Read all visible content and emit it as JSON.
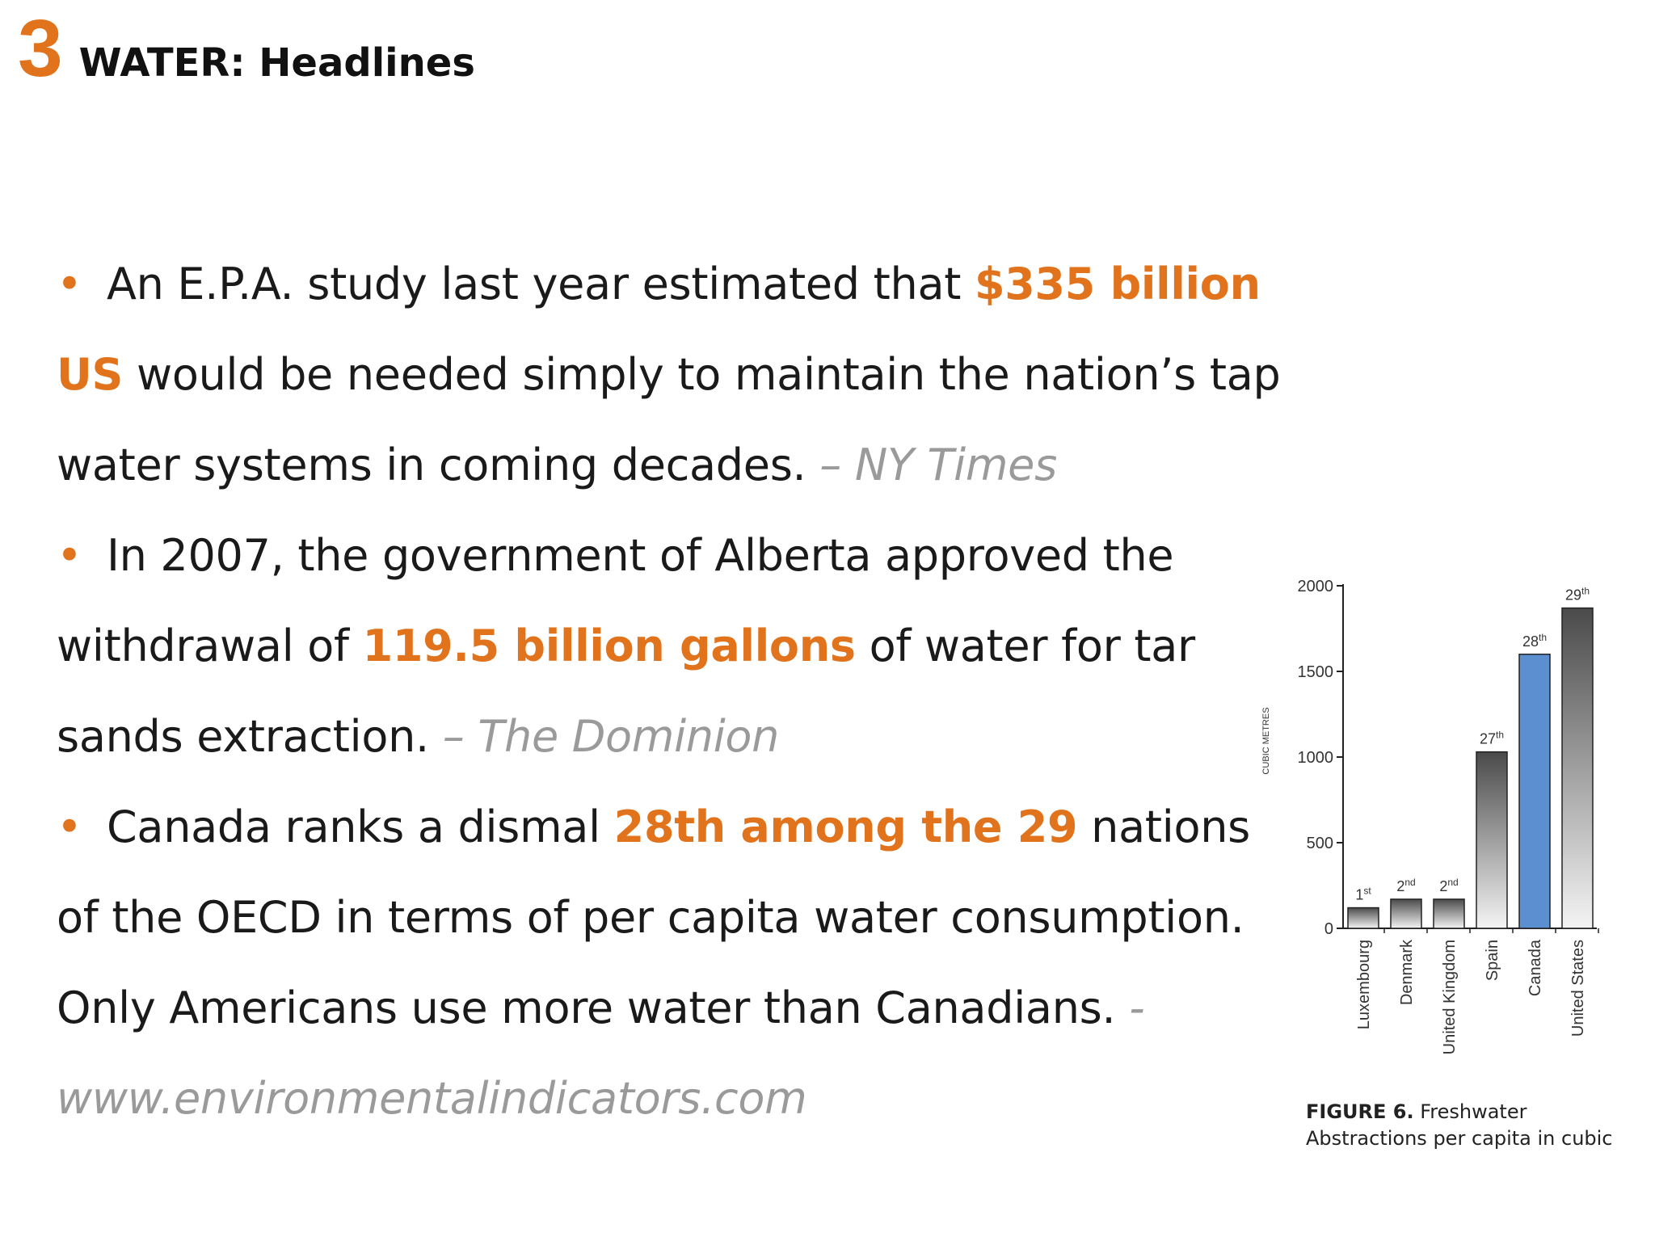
{
  "header": {
    "number": "3",
    "title": "WATER: Headlines"
  },
  "bullets": [
    {
      "parts": [
        {
          "t": "An E.P.A. study last year estimated that ",
          "s": "n"
        },
        {
          "t": "$335 billion US",
          "s": "h"
        },
        {
          "t": " would be needed simply to maintain the nation’s tap water systems in coming decades. ",
          "s": "n"
        },
        {
          "t": "– NY Times",
          "s": "src"
        }
      ]
    },
    {
      "parts": [
        {
          "t": "In 2007, the government of Alberta approved the withdrawal of ",
          "s": "n"
        },
        {
          "t": "119.5 billion gallons",
          "s": "h"
        },
        {
          "t": " of water for tar sands extraction. ",
          "s": "n"
        },
        {
          "t": "– The Dominion",
          "s": "src"
        }
      ]
    },
    {
      "parts": [
        {
          "t": "Canada ranks a dismal ",
          "s": "n"
        },
        {
          "t": "28th among the 29",
          "s": "h"
        },
        {
          "t": " nations of the OECD in terms of per capita water consumption. Only Americans use more water than Canadians. ",
          "s": "n"
        },
        {
          "t": "- www.environmentalindicators.com",
          "s": "src"
        }
      ]
    }
  ],
  "chart_data": {
    "type": "bar",
    "categories": [
      "Luxembourg",
      "Denmark",
      "United Kingdom",
      "Spain",
      "Canada",
      "United States"
    ],
    "values": [
      120,
      170,
      170,
      1030,
      1600,
      1870
    ],
    "ranks": [
      {
        "num": "1",
        "sup": "st"
      },
      {
        "num": "2",
        "sup": "nd"
      },
      {
        "num": "2",
        "sup": "nd"
      },
      {
        "num": "27",
        "sup": "th"
      },
      {
        "num": "28",
        "sup": "th"
      },
      {
        "num": "29",
        "sup": "th"
      }
    ],
    "highlight_index": 4,
    "ylabel": "CUBIC METRES",
    "yticks": [
      0,
      500,
      1000,
      1500,
      2000
    ],
    "ylim": [
      0,
      2000
    ],
    "grid": false,
    "colors": {
      "bar_highlight": "#5b8fd0",
      "bar_dark": "#4a4a4a",
      "bar_light": "#f4f4f4"
    }
  },
  "caption": {
    "figure": "FIGURE 6.",
    "text": " Freshwater Abstractions per capita in cubic"
  }
}
